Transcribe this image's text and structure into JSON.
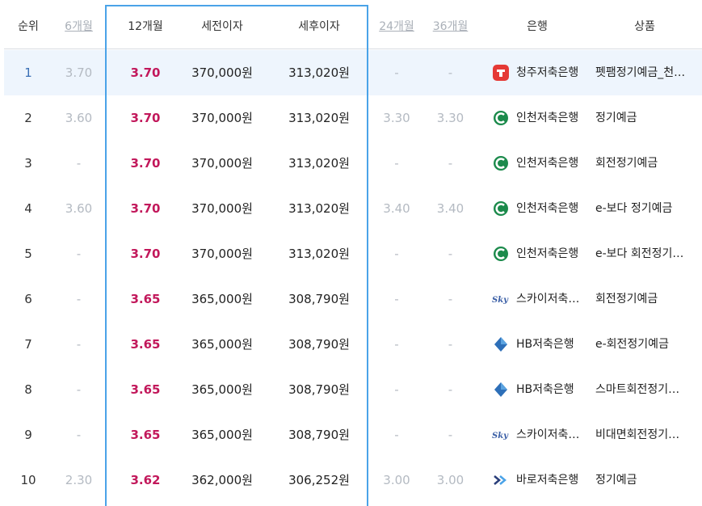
{
  "headers": {
    "rank": "순위",
    "m6": "6개월",
    "m12": "12개월",
    "pretax": "세전이자",
    "aftertax": "세후이자",
    "m24": "24개월",
    "m36": "36개월",
    "bank": "은행",
    "product": "상품"
  },
  "colors": {
    "highlight": "#4aa3e8",
    "rate_accent": "#c2185b",
    "active_row": "#eef5fd",
    "muted": "#b4bac2"
  },
  "rows": [
    {
      "rank": "1",
      "m6": "3.70",
      "m12": "3.70",
      "pretax": "370,000원",
      "aftertax": "313,020원",
      "m24": "-",
      "m36": "-",
      "bank": "청주저축은행",
      "product": "펫팸정기예금_천…",
      "logo": "cheongju-logo"
    },
    {
      "rank": "2",
      "m6": "3.60",
      "m12": "3.70",
      "pretax": "370,000원",
      "aftertax": "313,020원",
      "m24": "3.30",
      "m36": "3.30",
      "bank": "인천저축은행",
      "product": "정기예금",
      "logo": "incheon-logo"
    },
    {
      "rank": "3",
      "m6": "-",
      "m12": "3.70",
      "pretax": "370,000원",
      "aftertax": "313,020원",
      "m24": "-",
      "m36": "-",
      "bank": "인천저축은행",
      "product": "회전정기예금",
      "logo": "incheon-logo"
    },
    {
      "rank": "4",
      "m6": "3.60",
      "m12": "3.70",
      "pretax": "370,000원",
      "aftertax": "313,020원",
      "m24": "3.40",
      "m36": "3.40",
      "bank": "인천저축은행",
      "product": "e-보다 정기예금",
      "logo": "incheon-logo"
    },
    {
      "rank": "5",
      "m6": "-",
      "m12": "3.70",
      "pretax": "370,000원",
      "aftertax": "313,020원",
      "m24": "-",
      "m36": "-",
      "bank": "인천저축은행",
      "product": "e-보다 회전정기…",
      "logo": "incheon-logo"
    },
    {
      "rank": "6",
      "m6": "-",
      "m12": "3.65",
      "pretax": "365,000원",
      "aftertax": "308,790원",
      "m24": "-",
      "m36": "-",
      "bank": "스카이저축…",
      "product": "회전정기예금",
      "logo": "sky-logo"
    },
    {
      "rank": "7",
      "m6": "-",
      "m12": "3.65",
      "pretax": "365,000원",
      "aftertax": "308,790원",
      "m24": "-",
      "m36": "-",
      "bank": "HB저축은행",
      "product": "e-회전정기예금",
      "logo": "hb-logo"
    },
    {
      "rank": "8",
      "m6": "-",
      "m12": "3.65",
      "pretax": "365,000원",
      "aftertax": "308,790원",
      "m24": "-",
      "m36": "-",
      "bank": "HB저축은행",
      "product": "스마트회전정기…",
      "logo": "hb-logo"
    },
    {
      "rank": "9",
      "m6": "-",
      "m12": "3.65",
      "pretax": "365,000원",
      "aftertax": "308,790원",
      "m24": "-",
      "m36": "-",
      "bank": "스카이저축…",
      "product": "비대면회전정기…",
      "logo": "sky-logo"
    },
    {
      "rank": "10",
      "m6": "2.30",
      "m12": "3.62",
      "pretax": "362,000원",
      "aftertax": "306,252원",
      "m24": "3.00",
      "m36": "3.00",
      "bank": "바로저축은행",
      "product": "정기예금",
      "logo": "baro-logo"
    }
  ]
}
